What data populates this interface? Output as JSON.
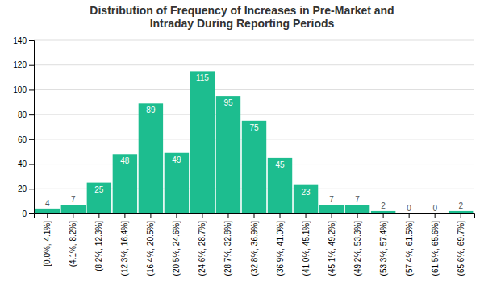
{
  "chart_data": {
    "type": "bar",
    "title": "Distribution of Frequency of Increases in Pre-Market and\nIntraday During Reporting Periods",
    "categories": [
      "[0.0%, 4.1%]",
      "(4.1%, 8.2%]",
      "(8.2%, 12.3%]",
      "(12.3%, 16.4%]",
      "(16.4%, 20.5%]",
      "(20.5%, 24.6%]",
      "(24.6%, 28.7%]",
      "(28.7%, 32.8%]",
      "(32.8%, 36.9%]",
      "(36.9%, 41.0%]",
      "(41.0%, 45.1%]",
      "(45.1%, 49.2%]",
      "(49.2%, 53.3%]",
      "(53.3%, 57.4%]",
      "(57.4%, 61.5%]",
      "(61.5%, 65.6%]",
      "(65.6%, 69.7%]"
    ],
    "values": [
      4,
      7,
      25,
      48,
      89,
      49,
      115,
      95,
      75,
      45,
      23,
      7,
      7,
      2,
      0,
      0,
      2
    ],
    "color": "#1dbd8f",
    "ylim": [
      0,
      140
    ],
    "yticks": [
      0,
      20,
      40,
      60,
      80,
      100,
      120,
      140
    ],
    "grid": true,
    "data_labels": true
  }
}
